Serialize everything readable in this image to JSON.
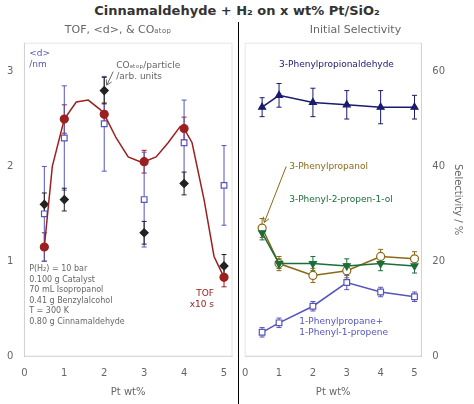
{
  "title": "Cinnamaldehyde + H₂ on x wt% Pt/SiO₂",
  "chart_data": [
    {
      "type": "scatter",
      "title": "TOF, <d>, & COₐₜₒₚ",
      "xlabel": "Pt wt%",
      "xlim": [
        0,
        5.2
      ],
      "xticks": [
        0,
        1,
        2,
        3,
        4,
        5
      ],
      "ylim": [
        0,
        3.3
      ],
      "yticks": [
        0,
        1,
        2,
        3
      ],
      "grid": false,
      "series": [
        {
          "type": "line",
          "marker": "none",
          "color": "#9B2020",
          "x": [
            0.5,
            0.7,
            1.0,
            1.3,
            1.6,
            1.9,
            2.0,
            2.3,
            2.6,
            2.9,
            3.0,
            3.3,
            3.6,
            3.9,
            4.0,
            4.2,
            4.5,
            4.75,
            5.0
          ],
          "values": [
            1.15,
            2.0,
            2.5,
            2.68,
            2.7,
            2.6,
            2.55,
            2.3,
            2.1,
            2.05,
            2.05,
            2.1,
            2.25,
            2.42,
            2.4,
            2.25,
            1.65,
            1.05,
            0.83
          ]
        },
        {
          "name": "TOF\nx10 s",
          "type": "scatter",
          "marker": "circle",
          "color": "#9B2020",
          "x": [
            0.5,
            1.0,
            2.0,
            3.0,
            4.0,
            5.0
          ],
          "values": [
            1.15,
            2.5,
            2.55,
            2.05,
            2.4,
            0.83
          ],
          "yerr": [
            0.15,
            0.15,
            0.12,
            0.12,
            0.12,
            0.1
          ]
        },
        {
          "name": "<d>\n/nm",
          "type": "scatter",
          "marker": "square_open",
          "color": "#5555bb",
          "x": [
            0.5,
            1.0,
            2.0,
            3.0,
            4.0,
            5.0
          ],
          "values": [
            1.5,
            2.3,
            2.45,
            1.65,
            2.25,
            1.8
          ],
          "yerr": [
            0.5,
            0.55,
            0.5,
            0.5,
            0.45,
            0.42
          ]
        },
        {
          "name": "COₐₜₒₚ/particle\n/arb. units",
          "type": "scatter",
          "marker": "diamond",
          "color": "#222222",
          "x": [
            0.5,
            1.0,
            2.0,
            3.0,
            4.0,
            5.0
          ],
          "values": [
            1.6,
            1.65,
            2.8,
            1.3,
            1.82,
            0.95
          ],
          "yerr": [
            0.12,
            0.12,
            0.14,
            0.12,
            0.12,
            0.12
          ]
        }
      ],
      "annotations": [
        "P(H₂) = 10 bar\n0.100 g Catalyst\n70 mL Isopropanol\n0.41 g Benzylalcohol\nT = 300 K\n0.80 g Cinnamaldehyde"
      ]
    },
    {
      "type": "line",
      "title": "Initial Selectivity",
      "xlabel": "Pt wt%",
      "ylabel": "Selectivity / %",
      "xlim": [
        0,
        5.2
      ],
      "xticks": [
        0,
        1,
        2,
        3,
        4,
        5
      ],
      "ylim": [
        0,
        66
      ],
      "yticks": [
        0,
        20,
        40,
        60
      ],
      "grid": false,
      "series": [
        {
          "name": "3-Phenylpropionaldehyde",
          "type": "line",
          "marker": "triangle_up",
          "color": "#1a1a6e",
          "x": [
            0.5,
            1.0,
            2.0,
            3.0,
            4.0,
            5.0
          ],
          "values": [
            52.5,
            55.0,
            53.5,
            53.0,
            52.5,
            52.5
          ],
          "yerr": [
            2.0,
            2.5,
            3.0,
            3.0,
            3.5,
            2.5
          ]
        },
        {
          "name": "3-Phenyl-2-propen-1-ol",
          "type": "line",
          "marker": "triangle_down",
          "color": "#1a6e3a",
          "x": [
            0.5,
            1.0,
            2.0,
            3.0,
            4.0,
            5.0
          ],
          "values": [
            26.0,
            19.5,
            19.5,
            19.0,
            19.5,
            19.0
          ],
          "yerr": [
            1.5,
            1.0,
            1.5,
            1.5,
            1.5,
            1.5
          ]
        },
        {
          "name": "3-Phenylpropanol",
          "type": "line",
          "marker": "circle_open",
          "color": "#8B6914",
          "x": [
            0.5,
            1.0,
            2.0,
            3.0,
            4.0,
            5.0
          ],
          "values": [
            27.0,
            19.5,
            17.0,
            18.0,
            21.0,
            20.5
          ],
          "yerr": [
            2.0,
            1.5,
            1.5,
            1.5,
            1.5,
            1.5
          ]
        },
        {
          "name": "1-Phenylpropane+\n1-Phenyl-1-propene",
          "type": "line",
          "marker": "square_open",
          "color": "#5555bb",
          "x": [
            0.5,
            1.0,
            2.0,
            3.0,
            4.0,
            5.0
          ],
          "values": [
            5.0,
            7.0,
            10.5,
            15.5,
            13.5,
            12.5
          ],
          "yerr": [
            1.0,
            1.0,
            1.0,
            1.5,
            1.0,
            1.0
          ]
        }
      ]
    }
  ]
}
